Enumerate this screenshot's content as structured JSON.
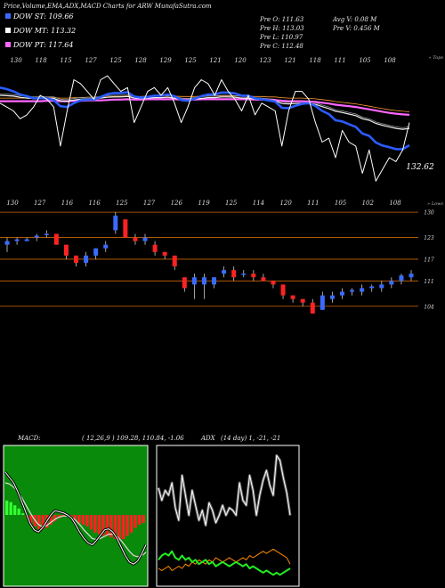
{
  "header": {
    "title": "Price,Volume,EMA,ADX,MACD Charts for ARW MunafaSutra.com"
  },
  "legend": [
    {
      "label": "DOW ST: 109.66",
      "color": "#3a6bff"
    },
    {
      "label": "DOW MT: 113.32",
      "color": "#ffffff"
    },
    {
      "label": "DOW PT: 117.64",
      "color": "#ff66ff"
    }
  ],
  "ohlc": {
    "open": "Pre   O: 111.63",
    "high": "Pre   H: 113.03",
    "low": "Pre   L: 110.97",
    "close": "Pre   C: 112.48",
    "avg_vol": "Avg V: 0.08  M",
    "pre_vol": "Pre   V: 0.456  M"
  },
  "chart_data": [
    {
      "type": "line",
      "name": "price-ema",
      "top_labels": [
        "130",
        "118",
        "115",
        "127",
        "125",
        "128",
        "129",
        "125",
        "121",
        "120",
        "123",
        "121",
        "118",
        "111",
        "105",
        "108"
      ],
      "bottom_labels": [
        "130",
        "127",
        "116",
        "116",
        "125",
        "127",
        "126",
        "119",
        "125",
        "114",
        "120",
        "111",
        "105",
        "102",
        "108"
      ],
      "corner_top": "» Tops",
      "last_value_label": "132.62",
      "close": [
        122,
        121,
        120,
        118,
        119,
        121,
        124,
        123,
        121,
        111,
        120,
        128,
        127,
        125,
        123,
        128,
        129,
        127,
        125,
        126,
        117,
        121,
        125,
        126,
        124,
        126,
        122,
        117,
        121,
        126,
        128,
        127,
        124,
        128,
        125,
        123,
        120,
        124,
        119,
        122,
        121,
        120,
        111,
        120,
        125,
        125,
        123,
        117,
        112,
        113,
        108,
        115,
        112,
        111,
        104,
        110,
        102,
        105,
        108,
        107,
        110,
        117
      ],
      "ema_short": [
        126,
        125.6,
        125,
        124.2,
        123.8,
        123.2,
        123.3,
        123.2,
        122.8,
        121.2,
        121,
        122,
        122.7,
        122.9,
        122.9,
        123.6,
        124.3,
        124.6,
        124.6,
        124.8,
        123.7,
        123.4,
        123.6,
        123.9,
        123.9,
        124.2,
        123.8,
        122.8,
        122.6,
        123.1,
        123.8,
        124.2,
        124.2,
        124.7,
        124.7,
        124.5,
        123.9,
        123.9,
        123.2,
        123,
        122.7,
        122.4,
        120.8,
        120.7,
        121.3,
        121.8,
        122,
        121.3,
        120,
        119.2,
        117.6,
        117.3,
        116.6,
        115.9,
        114.2,
        113.6,
        111.9,
        111.1,
        110.7,
        110.2,
        110.2,
        111.2
      ],
      "ema_mid": [
        124,
        123.9,
        123.8,
        123.5,
        123.3,
        123.2,
        123.3,
        123.3,
        123.2,
        122.6,
        122.5,
        122.8,
        123,
        123.1,
        123.1,
        123.3,
        123.5,
        123.6,
        123.6,
        123.7,
        123.3,
        123.2,
        123.3,
        123.4,
        123.4,
        123.5,
        123.3,
        122.9,
        122.8,
        123,
        123.2,
        123.4,
        123.4,
        123.6,
        123.6,
        123.5,
        123.3,
        123.3,
        123,
        122.9,
        122.7,
        122.6,
        121.9,
        121.8,
        121.9,
        122,
        122,
        121.7,
        121.1,
        120.6,
        119.9,
        119.6,
        119.2,
        118.8,
        118,
        117.6,
        116.8,
        116.3,
        115.9,
        115.5,
        115.3,
        115.5
      ],
      "ema_long": [
        122.5,
        122.5,
        122.5,
        122.5,
        122.5,
        122.5,
        122.5,
        122.6,
        122.6,
        122.5,
        122.5,
        122.6,
        122.6,
        122.7,
        122.7,
        122.7,
        122.8,
        122.9,
        122.9,
        123,
        122.9,
        122.9,
        123,
        123,
        123,
        123,
        123,
        122.9,
        122.9,
        122.9,
        123,
        123,
        123,
        123,
        123,
        123,
        123,
        123,
        122.9,
        122.9,
        122.8,
        122.8,
        122.6,
        122.5,
        122.5,
        122.5,
        122.4,
        122.3,
        122.1,
        121.9,
        121.6,
        121.4,
        121.2,
        121,
        120.7,
        120.4,
        120.1,
        119.8,
        119.5,
        119.3,
        119.1,
        119
      ]
    },
    {
      "type": "candlestick",
      "name": "candles",
      "corner_top": "» Lows",
      "right_ticks": [
        130,
        123,
        117,
        111,
        104
      ],
      "top_labels": [
        "130",
        "127",
        "116",
        "116",
        "125",
        "127",
        "126",
        "119",
        "125",
        "114",
        "120",
        "111",
        "105",
        "102",
        "108"
      ],
      "candles": [
        {
          "o": 121,
          "h": 123,
          "l": 119,
          "c": 122
        },
        {
          "o": 122,
          "h": 123,
          "l": 121,
          "c": 122.5
        },
        {
          "o": 122,
          "h": 123,
          "l": 122,
          "c": 122.5
        },
        {
          "o": 123,
          "h": 124,
          "l": 122,
          "c": 123.5
        },
        {
          "o": 124,
          "h": 125,
          "l": 123,
          "c": 124
        },
        {
          "o": 124,
          "h": 124,
          "l": 121,
          "c": 121
        },
        {
          "o": 121,
          "h": 121,
          "l": 117,
          "c": 118
        },
        {
          "o": 118,
          "h": 118,
          "l": 115,
          "c": 116
        },
        {
          "o": 116,
          "h": 119,
          "l": 115,
          "c": 118
        },
        {
          "o": 118,
          "h": 120,
          "l": 117,
          "c": 120
        },
        {
          "o": 120,
          "h": 122,
          "l": 119,
          "c": 121
        },
        {
          "o": 125,
          "h": 130,
          "l": 124,
          "c": 129
        },
        {
          "o": 128,
          "h": 128,
          "l": 123,
          "c": 123
        },
        {
          "o": 123,
          "h": 124,
          "l": 121,
          "c": 122
        },
        {
          "o": 122,
          "h": 124,
          "l": 121,
          "c": 123
        },
        {
          "o": 121,
          "h": 122,
          "l": 118,
          "c": 119
        },
        {
          "o": 119,
          "h": 119,
          "l": 117,
          "c": 118
        },
        {
          "o": 118,
          "h": 118,
          "l": 114,
          "c": 115
        },
        {
          "o": 112,
          "h": 112,
          "l": 108,
          "c": 109
        },
        {
          "o": 110,
          "h": 113,
          "l": 106,
          "c": 112
        },
        {
          "o": 110,
          "h": 113,
          "l": 106,
          "c": 112
        },
        {
          "o": 110,
          "h": 112,
          "l": 109,
          "c": 112
        },
        {
          "o": 113,
          "h": 115,
          "l": 112,
          "c": 114
        },
        {
          "o": 114,
          "h": 115,
          "l": 111,
          "c": 112
        },
        {
          "o": 113,
          "h": 114,
          "l": 112,
          "c": 113
        },
        {
          "o": 113,
          "h": 114,
          "l": 111,
          "c": 112
        },
        {
          "o": 112,
          "h": 113,
          "l": 111,
          "c": 111
        },
        {
          "o": 111,
          "h": 111,
          "l": 109,
          "c": 110
        },
        {
          "o": 110,
          "h": 110,
          "l": 106,
          "c": 107
        },
        {
          "o": 107,
          "h": 107,
          "l": 105,
          "c": 106
        },
        {
          "o": 106,
          "h": 106,
          "l": 104,
          "c": 105
        },
        {
          "o": 105,
          "h": 106,
          "l": 102,
          "c": 102
        },
        {
          "o": 103,
          "h": 108,
          "l": 103,
          "c": 107
        },
        {
          "o": 106,
          "h": 108,
          "l": 105,
          "c": 107
        },
        {
          "o": 107,
          "h": 109,
          "l": 106,
          "c": 108
        },
        {
          "o": 108,
          "h": 109,
          "l": 107,
          "c": 108.5
        },
        {
          "o": 108,
          "h": 110,
          "l": 107,
          "c": 109
        },
        {
          "o": 109,
          "h": 110,
          "l": 108,
          "c": 109.5
        },
        {
          "o": 109,
          "h": 111,
          "l": 108,
          "c": 110
        },
        {
          "o": 110,
          "h": 112,
          "l": 109,
          "c": 111
        },
        {
          "o": 111,
          "h": 113,
          "l": 110,
          "c": 112.5
        },
        {
          "o": 112,
          "h": 114,
          "l": 111,
          "c": 113
        }
      ]
    },
    {
      "type": "bar",
      "name": "macd",
      "title": "MACD:",
      "params": "( 12,26,9 ) 109.28, 110.84, -1.06",
      "histogram": [
        0.9,
        0.8,
        0.6,
        0.4,
        0.1,
        -0.2,
        -0.5,
        -0.7,
        -0.9,
        -0.9,
        -0.8,
        -0.6,
        -0.4,
        -0.2,
        -0.1,
        -0.1,
        -0.2,
        -0.3,
        -0.5,
        -0.6,
        -0.7,
        -0.9,
        -1.1,
        -1.2,
        -1.3,
        -1.3,
        -1.4,
        -1.5,
        -1.6,
        -1.5,
        -1.3,
        -1.1,
        -0.8,
        -0.6,
        -0.5
      ],
      "macd_line": [
        4,
        3.5,
        3,
        2.2,
        1.2,
        0.2,
        -0.8,
        -1.4,
        -1.6,
        -1.2,
        -0.6,
        0,
        0.4,
        0.3,
        0.2,
        0,
        -0.3,
        -0.9,
        -1.6,
        -2.2,
        -2.6,
        -2.8,
        -2.4,
        -1.9,
        -1.4,
        -1.3,
        -1.6,
        -2.2,
        -3,
        -3.8,
        -4.4,
        -4.6,
        -4.3,
        -3.6,
        -2.8
      ],
      "signal_line": [
        3,
        2.9,
        2.6,
        2.2,
        1.6,
        0.9,
        0.2,
        -0.4,
        -0.9,
        -1.1,
        -1,
        -0.7,
        -0.4,
        -0.2,
        -0.1,
        -0.1,
        -0.2,
        -0.5,
        -0.9,
        -1.4,
        -1.8,
        -2.2,
        -2.3,
        -2.2,
        -2,
        -1.8,
        -1.8,
        -2,
        -2.4,
        -2.9,
        -3.4,
        -3.8,
        -3.9,
        -3.8,
        -3.5
      ]
    },
    {
      "type": "line",
      "name": "adx",
      "title": "ADX",
      "params": "(14 day) 1, -21, -21",
      "adx_white": [
        33,
        28,
        32,
        30,
        35,
        25,
        20,
        38,
        30,
        22,
        32,
        26,
        20,
        24,
        18,
        27,
        24,
        19,
        22,
        26,
        22,
        25,
        24,
        22,
        35,
        28,
        26,
        38,
        32,
        22,
        30,
        36,
        40,
        34,
        30,
        46,
        44,
        37,
        31,
        22
      ],
      "plus_di": [
        14,
        16,
        17,
        16,
        18,
        15,
        14,
        16,
        14,
        15,
        13,
        14,
        12,
        13,
        14,
        12,
        13,
        11,
        12,
        13,
        12,
        11,
        12,
        13,
        12,
        11,
        12,
        10,
        11,
        10,
        9,
        8,
        9,
        8,
        7,
        8,
        7,
        8,
        9,
        10
      ],
      "minus_di": [
        10,
        9,
        10,
        11,
        9,
        10,
        11,
        10,
        12,
        11,
        13,
        12,
        14,
        13,
        12,
        14,
        13,
        15,
        14,
        13,
        14,
        15,
        14,
        13,
        14,
        15,
        14,
        16,
        15,
        16,
        17,
        18,
        17,
        18,
        19,
        18,
        17,
        16,
        15,
        12
      ]
    }
  ]
}
